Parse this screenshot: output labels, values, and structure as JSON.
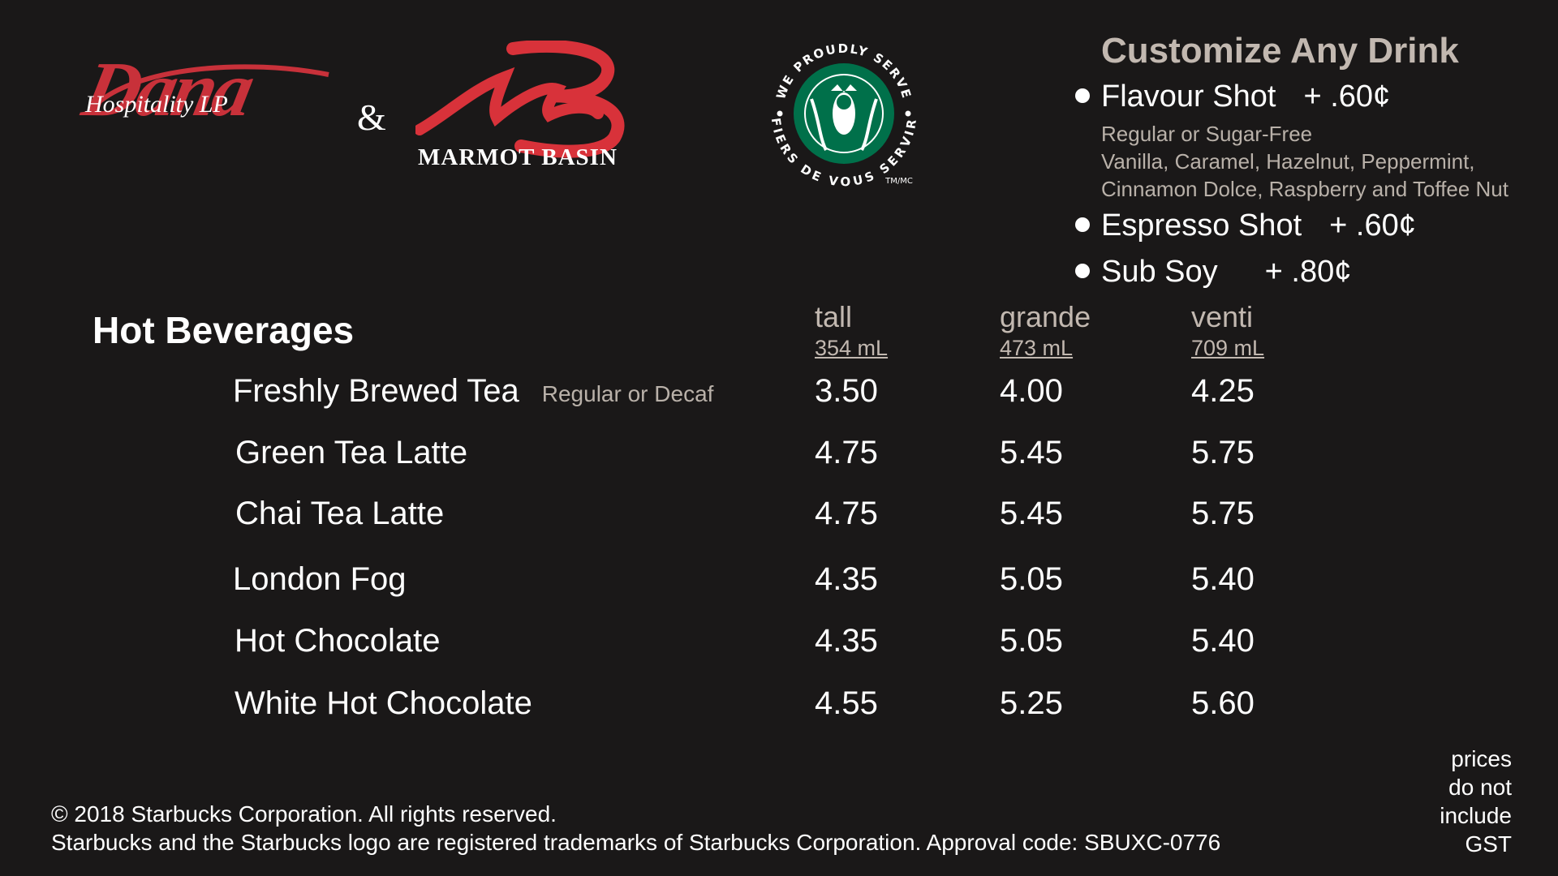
{
  "logos": {
    "dana_script": "Dana",
    "dana_sub": "Hospitality LP",
    "ampersand": "&",
    "marmot_name": "MARMOT BASIN",
    "seal_top": "WE PROUDLY SERVE",
    "seal_bottom": "FIERS DE VOUS SERVIR",
    "seal_tm": "TM/MC",
    "colors": {
      "dana_red": "#c8313a",
      "starbucks_green": "#00704a"
    }
  },
  "customize": {
    "title": "Customize Any Drink",
    "options": [
      {
        "name": "Flavour Shot",
        "price": "+ .60¢"
      },
      {
        "name": "Espresso Shot",
        "price": "+ .60¢"
      },
      {
        "name": "Sub Soy",
        "price": "+ .80¢"
      }
    ],
    "flavour_details": [
      "Regular or Sugar-Free",
      "Vanilla, Caramel, Hazelnut, Peppermint,",
      "Cinnamon Dolce, Raspberry and Toffee Nut"
    ]
  },
  "menu": {
    "section_title": "Hot Beverages",
    "sizes": [
      {
        "name": "tall",
        "volume": "354 mL"
      },
      {
        "name": "grande",
        "volume": "473 mL"
      },
      {
        "name": "venti",
        "volume": "709 mL"
      }
    ],
    "items": [
      {
        "name": "Freshly Brewed Tea",
        "note": "Regular or Decaf",
        "prices": [
          "3.50",
          "4.00",
          "4.25"
        ]
      },
      {
        "name": "Green Tea Latte",
        "note": "",
        "prices": [
          "4.75",
          "5.45",
          "5.75"
        ]
      },
      {
        "name": "Chai Tea Latte",
        "note": "",
        "prices": [
          "4.75",
          "5.45",
          "5.75"
        ]
      },
      {
        "name": "London Fog",
        "note": "",
        "prices": [
          "4.35",
          "5.05",
          "5.40"
        ]
      },
      {
        "name": "Hot Chocolate",
        "note": "",
        "prices": [
          "4.35",
          "5.05",
          "5.40"
        ]
      },
      {
        "name": "White Hot Chocolate",
        "note": "",
        "prices": [
          "4.55",
          "5.25",
          "5.60"
        ]
      }
    ]
  },
  "footer": {
    "copyright": "© 2018 Starbucks Corporation. All rights reserved.",
    "trademark": "Starbucks and the Starbucks logo are registered trademarks of Starbucks Corporation. Approval code: SBUXC-0776",
    "gst_note": [
      "prices",
      "do not",
      "include",
      "GST"
    ]
  }
}
